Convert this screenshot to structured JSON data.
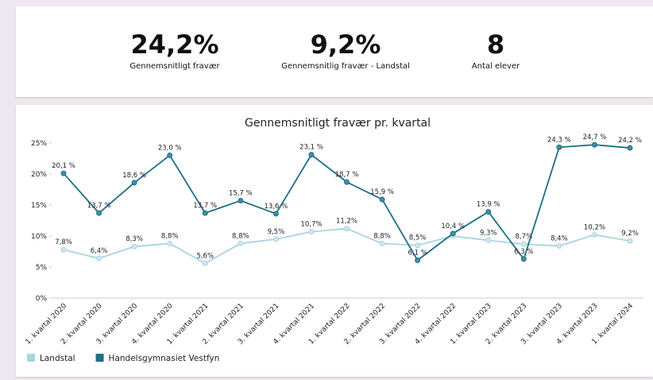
{
  "kpis": [
    {
      "value": "24,2%",
      "label": "Gennemsnitligt fravær"
    },
    {
      "value": "9,2%",
      "label": "Gennemsnitlig fravær - Landstal"
    },
    {
      "value": "8",
      "label": "Antal elever"
    }
  ],
  "chart_data": {
    "type": "line",
    "title": "Gennemsnitligt fravær pr. kvartal",
    "categories": [
      "1. kvartal 2020",
      "2. kvartal 2020",
      "3. kvartal 2020",
      "4. kvartal 2020",
      "1. kvartal 2021",
      "2. kvartal 2021",
      "3. kvartal 2021",
      "4. kvartal 2021",
      "1. kvartal 2022",
      "2. kvartal 2022",
      "3. kvartal 2022",
      "4. kvartal 2022",
      "1. kvartal 2023",
      "2. kvartal 2023",
      "3. kvartal 2023",
      "4. kvartal 2023",
      "1. kvartal 2024"
    ],
    "series": [
      {
        "name": "Landstal",
        "color": "#a9d4e0",
        "values": [
          7.8,
          6.4,
          8.3,
          8.8,
          5.6,
          8.8,
          9.5,
          10.7,
          11.2,
          8.8,
          8.5,
          10.0,
          9.3,
          8.7,
          8.4,
          10.2,
          9.2
        ],
        "value_labels": [
          "7,8%",
          "6,4%",
          "8,3%",
          "8,8%",
          "5,6%",
          "8,8%",
          "9,5%",
          "10,7%",
          "11,2%",
          "8,8%",
          "8,5%",
          null,
          "9,3%",
          "8,7%",
          "8,4%",
          "10,2%",
          "9,2%"
        ]
      },
      {
        "name": "Handelsgymnasiet Vestfyn",
        "color": "#1d6e87",
        "values": [
          20.1,
          13.7,
          18.6,
          23.0,
          13.7,
          15.7,
          13.6,
          23.1,
          18.7,
          15.9,
          6.1,
          10.4,
          13.9,
          6.3,
          24.3,
          24.7,
          24.2
        ],
        "value_labels": [
          "20,1 %",
          "13,7 %",
          "18,6 %",
          "23,0 %",
          "13,7 %",
          "15,7 %",
          "13,6 %",
          "23,1 %",
          "18,7 %",
          "15,9 %",
          "6,1 %",
          "10,4 %",
          "13,9 %",
          "6,3 %",
          "24,3 %",
          "24,7 %",
          "24,2 %"
        ]
      }
    ],
    "ylim": [
      0,
      26
    ],
    "yticks": [
      {
        "value": 0,
        "label": "0%"
      },
      {
        "value": 5,
        "label": "5%"
      },
      {
        "value": 10,
        "label": "10%"
      },
      {
        "value": 15,
        "label": "15%"
      },
      {
        "value": 20,
        "label": "20%"
      },
      {
        "value": 25,
        "label": "25%"
      }
    ],
    "grid": false
  }
}
